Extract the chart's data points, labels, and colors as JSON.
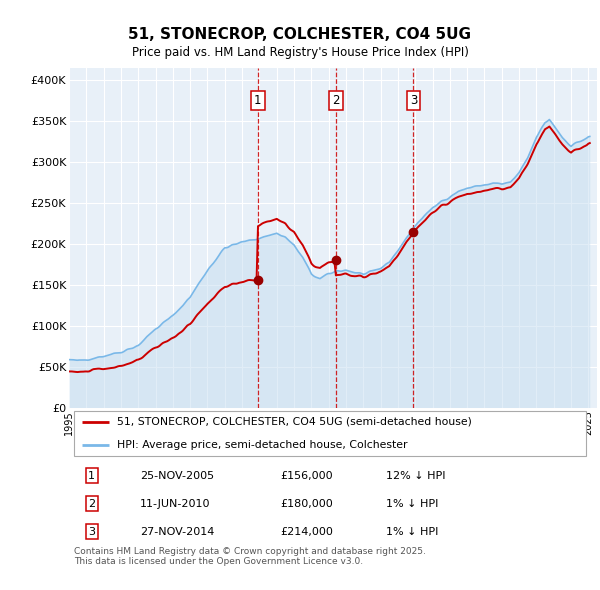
{
  "title": "51, STONECROP, COLCHESTER, CO4 5UG",
  "subtitle": "Price paid vs. HM Land Registry's House Price Index (HPI)",
  "ylabel_ticks": [
    "£0",
    "£50K",
    "£100K",
    "£150K",
    "£200K",
    "£250K",
    "£300K",
    "£350K",
    "£400K"
  ],
  "ytick_values": [
    0,
    50000,
    100000,
    150000,
    200000,
    250000,
    300000,
    350000,
    400000
  ],
  "ylim": [
    0,
    415000
  ],
  "xlim_start": 1995.0,
  "xlim_end": 2025.5,
  "plot_bg_color": "#e8f0f8",
  "grid_color": "#ffffff",
  "sale_markers": [
    {
      "date": 2005.9,
      "price": 156000,
      "label": "1"
    },
    {
      "date": 2010.44,
      "price": 180000,
      "label": "2"
    },
    {
      "date": 2014.9,
      "price": 214000,
      "label": "3"
    }
  ],
  "hpi_line_color": "#7ab8e8",
  "hpi_fill_color": "#c5ddf0",
  "price_line_color": "#cc0000",
  "marker_color": "#990000",
  "legend_entries": [
    "51, STONECROP, COLCHESTER, CO4 5UG (semi-detached house)",
    "HPI: Average price, semi-detached house, Colchester"
  ],
  "table_rows": [
    {
      "num": "1",
      "date": "25-NOV-2005",
      "price": "£156,000",
      "note": "12% ↓ HPI"
    },
    {
      "num": "2",
      "date": "11-JUN-2010",
      "price": "£180,000",
      "note": "1% ↓ HPI"
    },
    {
      "num": "3",
      "date": "27-NOV-2014",
      "price": "£214,000",
      "note": "1% ↓ HPI"
    }
  ],
  "footer": "Contains HM Land Registry data © Crown copyright and database right 2025.\nThis data is licensed under the Open Government Licence v3.0."
}
